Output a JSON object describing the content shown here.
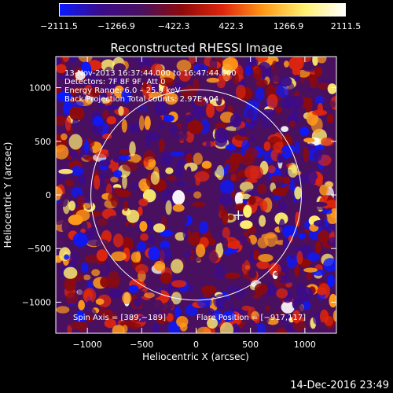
{
  "chart_data": {
    "type": "heatmap",
    "title": "Reconstructed RHESSI Image",
    "xlabel": "Heliocentric X (arcsec)",
    "ylabel": "Heliocentric Y (arcsec)",
    "xlim": [
      -1290,
      1290
    ],
    "ylim": [
      -1290,
      1290
    ],
    "xticks": [
      -1000,
      -500,
      0,
      500,
      1000
    ],
    "yticks": [
      -1000,
      -500,
      0,
      500,
      1000
    ],
    "xtick_labels": [
      "−1000",
      "−500",
      "0",
      "500",
      "1000"
    ],
    "ytick_labels": [
      "−1000",
      "−500",
      "0",
      "500",
      "1000"
    ],
    "colorbar": {
      "range": [
        -2111.5,
        2111.5
      ],
      "tick_values": [
        -2111.5,
        -1266.9,
        -422.3,
        422.3,
        1266.9,
        2111.5
      ],
      "tick_labels": [
        "−2111.5",
        "−1266.9",
        "−422.3",
        "422.3",
        "1266.9",
        "2111.5"
      ],
      "colors": [
        "#0a1aff",
        "#3b0c8a",
        "#4a1060",
        "#8e0a0a",
        "#e0260c",
        "#ff9a18",
        "#ffef70",
        "#ffffff"
      ]
    },
    "solar_disk_radius_arcsec": 968,
    "flare_position": [
      -917,
      117
    ],
    "cross_marker": [
      389,
      -189
    ],
    "annotations": {
      "line1": "13-Nov-2013 16:37:44.000 to 16:47:44.000",
      "line2": "Detectors: 7F 8F 9F, Att 0",
      "line3": "Energy Range: 6.0 – 25.0 keV",
      "line4": "Back Projection    Total counts: 2.97E+04",
      "spin_axis": "Spin Axis = [389,−189]",
      "flare_pos": "Flare Position = [−917,117]"
    }
  },
  "footer": {
    "date": "14-Dec-2016 23:49"
  }
}
